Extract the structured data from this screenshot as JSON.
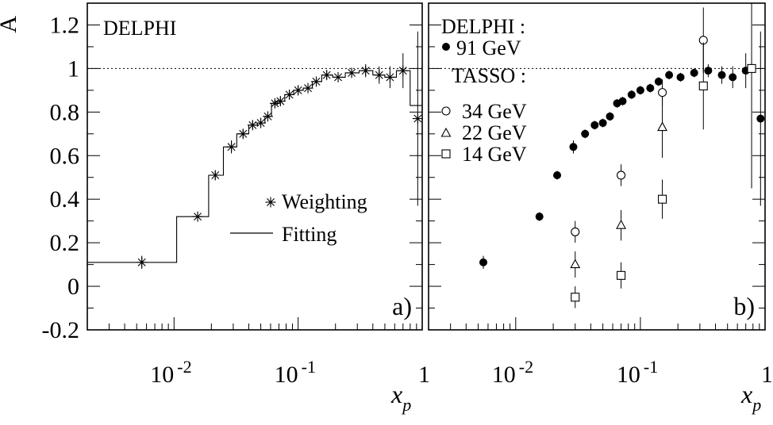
{
  "chart_data": [
    {
      "type": "scatter",
      "panel_label": "a)",
      "experiment_label": "DELPHI",
      "ylabel": "A",
      "xlabel_main": "x",
      "xlabel_sub": "p",
      "xscale": "log",
      "xlim": [
        0.002,
        1.0
      ],
      "ylim": [
        -0.2,
        1.3
      ],
      "x_tick_labels": [
        {
          "value": 0.01,
          "base": "10",
          "exp": "-2"
        },
        {
          "value": 0.1,
          "base": "10",
          "exp": "-1"
        },
        {
          "value": 1.0,
          "base": "1",
          "exp": ""
        }
      ],
      "y_ticks": [
        -0.2,
        0,
        0.2,
        0.4,
        0.6,
        0.8,
        1.0,
        1.2
      ],
      "y_tick_labels": [
        "-0.2",
        "0",
        "0.2",
        "0.4",
        "0.6",
        "0.8",
        "1",
        "1.2"
      ],
      "reference_line": 1.0,
      "legend": {
        "placement": "middle-right",
        "weighting_label": "Weighting",
        "fitting_label": "Fitting"
      },
      "series": [
        {
          "name": "Weighting",
          "marker": "asterisk",
          "points": [
            {
              "x": 0.0055,
              "y": 0.11,
              "err": 0.03
            },
            {
              "x": 0.0155,
              "y": 0.32,
              "err": 0.02
            },
            {
              "x": 0.0215,
              "y": 0.51,
              "err": 0.02
            },
            {
              "x": 0.029,
              "y": 0.64,
              "err": 0.03
            },
            {
              "x": 0.036,
              "y": 0.7,
              "err": 0.02
            },
            {
              "x": 0.043,
              "y": 0.74,
              "err": 0.02
            },
            {
              "x": 0.05,
              "y": 0.75,
              "err": 0.02
            },
            {
              "x": 0.057,
              "y": 0.78,
              "err": 0.02
            },
            {
              "x": 0.065,
              "y": 0.84,
              "err": 0.02
            },
            {
              "x": 0.072,
              "y": 0.85,
              "err": 0.02
            },
            {
              "x": 0.085,
              "y": 0.88,
              "err": 0.02
            },
            {
              "x": 0.1,
              "y": 0.9,
              "err": 0.02
            },
            {
              "x": 0.12,
              "y": 0.91,
              "err": 0.02
            },
            {
              "x": 0.14,
              "y": 0.94,
              "err": 0.02
            },
            {
              "x": 0.17,
              "y": 0.97,
              "err": 0.02
            },
            {
              "x": 0.21,
              "y": 0.96,
              "err": 0.02
            },
            {
              "x": 0.27,
              "y": 0.98,
              "err": 0.02
            },
            {
              "x": 0.35,
              "y": 0.99,
              "err": 0.03
            },
            {
              "x": 0.45,
              "y": 0.97,
              "err": 0.04
            },
            {
              "x": 0.55,
              "y": 0.96,
              "err": 0.05
            },
            {
              "x": 0.7,
              "y": 0.99,
              "err": 0.08
            },
            {
              "x": 0.92,
              "y": 0.77,
              "err": 0.4
            }
          ]
        },
        {
          "name": "Fitting",
          "style": "step",
          "steps": [
            {
              "x0": 0.002,
              "x1": 0.0105,
              "y": 0.11
            },
            {
              "x0": 0.0105,
              "x1": 0.019,
              "y": 0.32
            },
            {
              "x0": 0.019,
              "x1": 0.025,
              "y": 0.51
            },
            {
              "x0": 0.025,
              "x1": 0.032,
              "y": 0.64
            },
            {
              "x0": 0.032,
              "x1": 0.04,
              "y": 0.7
            },
            {
              "x0": 0.04,
              "x1": 0.047,
              "y": 0.74
            },
            {
              "x0": 0.047,
              "x1": 0.054,
              "y": 0.75
            },
            {
              "x0": 0.054,
              "x1": 0.061,
              "y": 0.78
            },
            {
              "x0": 0.061,
              "x1": 0.068,
              "y": 0.84
            },
            {
              "x0": 0.068,
              "x1": 0.078,
              "y": 0.85
            },
            {
              "x0": 0.078,
              "x1": 0.092,
              "y": 0.88
            },
            {
              "x0": 0.092,
              "x1": 0.11,
              "y": 0.9
            },
            {
              "x0": 0.11,
              "x1": 0.13,
              "y": 0.91
            },
            {
              "x0": 0.13,
              "x1": 0.155,
              "y": 0.94
            },
            {
              "x0": 0.155,
              "x1": 0.19,
              "y": 0.97
            },
            {
              "x0": 0.19,
              "x1": 0.24,
              "y": 0.96
            },
            {
              "x0": 0.24,
              "x1": 0.31,
              "y": 0.98
            },
            {
              "x0": 0.31,
              "x1": 0.4,
              "y": 0.99
            },
            {
              "x0": 0.4,
              "x1": 0.5,
              "y": 0.97
            },
            {
              "x0": 0.5,
              "x1": 0.62,
              "y": 0.96
            },
            {
              "x0": 0.62,
              "x1": 0.8,
              "y": 0.99
            },
            {
              "x0": 0.8,
              "x1": 1.0,
              "y": 0.83
            }
          ]
        }
      ]
    },
    {
      "type": "scatter",
      "panel_label": "b)",
      "xlabel_main": "x",
      "xlabel_sub": "p",
      "xscale": "log",
      "xlim": [
        0.002,
        1.0
      ],
      "ylim": [
        -0.2,
        1.3
      ],
      "x_tick_labels": [
        {
          "value": 0.01,
          "base": "10",
          "exp": "-2"
        },
        {
          "value": 0.1,
          "base": "10",
          "exp": "-1"
        },
        {
          "value": 1.0,
          "base": "1",
          "exp": ""
        }
      ],
      "reference_line": 1.0,
      "legend": {
        "placement": "top-left",
        "delphi_heading": "DELPHI :",
        "tasso_heading": "TASSO :"
      },
      "series": [
        {
          "name": "91 GeV",
          "group": "DELPHI",
          "marker": "filled-circle",
          "points": [
            {
              "x": 0.0055,
              "y": 0.11,
              "err": 0.03
            },
            {
              "x": 0.0155,
              "y": 0.32,
              "err": 0.02
            },
            {
              "x": 0.0215,
              "y": 0.51,
              "err": 0.02
            },
            {
              "x": 0.029,
              "y": 0.64,
              "err": 0.03
            },
            {
              "x": 0.036,
              "y": 0.7,
              "err": 0.02
            },
            {
              "x": 0.043,
              "y": 0.74,
              "err": 0.02
            },
            {
              "x": 0.05,
              "y": 0.75,
              "err": 0.02
            },
            {
              "x": 0.057,
              "y": 0.78,
              "err": 0.02
            },
            {
              "x": 0.065,
              "y": 0.84,
              "err": 0.02
            },
            {
              "x": 0.072,
              "y": 0.85,
              "err": 0.02
            },
            {
              "x": 0.085,
              "y": 0.88,
              "err": 0.02
            },
            {
              "x": 0.1,
              "y": 0.9,
              "err": 0.02
            },
            {
              "x": 0.12,
              "y": 0.91,
              "err": 0.02
            },
            {
              "x": 0.14,
              "y": 0.94,
              "err": 0.02
            },
            {
              "x": 0.17,
              "y": 0.97,
              "err": 0.02
            },
            {
              "x": 0.21,
              "y": 0.96,
              "err": 0.02
            },
            {
              "x": 0.27,
              "y": 0.98,
              "err": 0.02
            },
            {
              "x": 0.35,
              "y": 0.99,
              "err": 0.03
            },
            {
              "x": 0.45,
              "y": 0.97,
              "err": 0.04
            },
            {
              "x": 0.55,
              "y": 0.96,
              "err": 0.05
            },
            {
              "x": 0.7,
              "y": 0.99,
              "err": 0.08
            },
            {
              "x": 0.92,
              "y": 0.77,
              "err": 0.4
            }
          ]
        },
        {
          "name": "34 GeV",
          "group": "TASSO",
          "marker": "open-circle",
          "points": [
            {
              "x": 0.03,
              "y": 0.25,
              "err": 0.05
            },
            {
              "x": 0.07,
              "y": 0.51,
              "err": 0.05
            },
            {
              "x": 0.15,
              "y": 0.89,
              "err": 0.06
            },
            {
              "x": 0.32,
              "y": 1.13,
              "err": 0.15
            }
          ]
        },
        {
          "name": "22 GeV",
          "group": "TASSO",
          "marker": "open-triangle",
          "points": [
            {
              "x": 0.03,
              "y": 0.1,
              "err": 0.06
            },
            {
              "x": 0.07,
              "y": 0.28,
              "err": 0.07
            },
            {
              "x": 0.15,
              "y": 0.73,
              "err": 0.14
            }
          ]
        },
        {
          "name": "14 GeV",
          "group": "TASSO",
          "marker": "open-square",
          "points": [
            {
              "x": 0.03,
              "y": -0.05,
              "err": 0.05
            },
            {
              "x": 0.07,
              "y": 0.05,
              "err": 0.06
            },
            {
              "x": 0.15,
              "y": 0.4,
              "err": 0.09
            },
            {
              "x": 0.32,
              "y": 0.92,
              "err": 0.2
            },
            {
              "x": 0.78,
              "y": 1.0,
              "err": 0.55
            }
          ]
        }
      ]
    }
  ]
}
